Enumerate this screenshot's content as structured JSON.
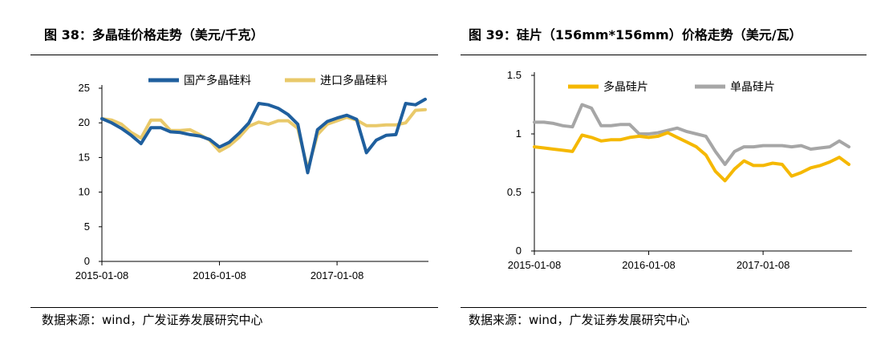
{
  "charts": [
    {
      "title": "图 38：多晶硅价格走势（美元/千克）",
      "source": "数据来源：wind，广发证券发展研究中心",
      "legend": [
        {
          "name": "国产多晶硅料",
          "color": "#1f5f9e"
        },
        {
          "name": "进口多晶硅料",
          "color": "#e9c96a"
        }
      ],
      "y_ticks": [
        "0",
        "5",
        "10",
        "15",
        "20",
        "25"
      ],
      "x_ticks": [
        "2015-01-08",
        "2016-01-08",
        "2017-01-08"
      ]
    },
    {
      "title": "图 39：硅片（156mm*156mm）价格走势（美元/瓦）",
      "source": "数据来源：wind，广发证券发展研究中心",
      "legend": [
        {
          "name": "多晶硅片",
          "color": "#f5b800"
        },
        {
          "name": "单晶硅片",
          "color": "#a6a6a6"
        }
      ],
      "y_ticks": [
        "0",
        "0.5",
        "1",
        "1.5"
      ],
      "x_ticks": [
        "2015-01-08",
        "2016-01-08",
        "2017-01-08"
      ]
    }
  ],
  "chart_data": [
    {
      "type": "line",
      "title": "图 38：多晶硅价格走势（美元/千克）",
      "xlabel": "",
      "ylabel": "",
      "ylim": [
        0,
        25
      ],
      "x_tick_labels": [
        "2015-01-08",
        "2016-01-08",
        "2017-01-08"
      ],
      "x": [
        "2015-01",
        "2015-02",
        "2015-03",
        "2015-04",
        "2015-05",
        "2015-06",
        "2015-07",
        "2015-08",
        "2015-09",
        "2015-10",
        "2015-11",
        "2015-12",
        "2016-01",
        "2016-02",
        "2016-03",
        "2016-04",
        "2016-05",
        "2016-06",
        "2016-07",
        "2016-08",
        "2016-09",
        "2016-10",
        "2016-11",
        "2016-12",
        "2017-01",
        "2017-02",
        "2017-03",
        "2017-04",
        "2017-05",
        "2017-06",
        "2017-07",
        "2017-08",
        "2017-09",
        "2017-10"
      ],
      "series": [
        {
          "name": "国产多晶硅料",
          "color": "#1f5f9e",
          "values": [
            20.6,
            20.0,
            19.2,
            18.2,
            17.0,
            19.3,
            19.3,
            18.7,
            18.6,
            18.3,
            18.1,
            17.6,
            16.5,
            17.2,
            18.5,
            20.0,
            22.8,
            22.6,
            22.1,
            21.2,
            19.8,
            12.8,
            19.0,
            20.2,
            20.7,
            21.1,
            20.5,
            15.7,
            17.5,
            18.2,
            18.3,
            22.8,
            22.6,
            23.4
          ]
        },
        {
          "name": "进口多晶硅料",
          "color": "#e9c96a",
          "values": [
            20.6,
            20.4,
            19.8,
            18.6,
            17.8,
            20.4,
            20.4,
            18.9,
            18.9,
            19.0,
            18.3,
            17.5,
            15.9,
            16.7,
            17.9,
            19.5,
            20.1,
            19.8,
            20.3,
            20.3,
            19.2,
            13.3,
            18.3,
            19.8,
            20.3,
            20.8,
            20.4,
            19.6,
            19.6,
            19.7,
            19.7,
            20.0,
            21.8,
            21.9
          ]
        }
      ]
    },
    {
      "type": "line",
      "title": "图 39：硅片（156mm*156mm）价格走势（美元/瓦）",
      "xlabel": "",
      "ylabel": "",
      "ylim": [
        0,
        1.5
      ],
      "x_tick_labels": [
        "2015-01-08",
        "2016-01-08",
        "2017-01-08"
      ],
      "x": [
        "2015-01",
        "2015-02",
        "2015-03",
        "2015-04",
        "2015-05",
        "2015-06",
        "2015-07",
        "2015-08",
        "2015-09",
        "2015-10",
        "2015-11",
        "2015-12",
        "2016-01",
        "2016-02",
        "2016-03",
        "2016-04",
        "2016-05",
        "2016-06",
        "2016-07",
        "2016-08",
        "2016-09",
        "2016-10",
        "2016-11",
        "2016-12",
        "2017-01",
        "2017-02",
        "2017-03",
        "2017-04",
        "2017-05",
        "2017-06",
        "2017-07",
        "2017-08",
        "2017-09",
        "2017-10"
      ],
      "series": [
        {
          "name": "多晶硅片",
          "color": "#f5b800",
          "values": [
            0.89,
            0.88,
            0.87,
            0.86,
            0.85,
            0.99,
            0.97,
            0.94,
            0.95,
            0.95,
            0.97,
            0.98,
            0.97,
            0.98,
            1.01,
            0.97,
            0.93,
            0.89,
            0.82,
            0.68,
            0.6,
            0.7,
            0.77,
            0.73,
            0.73,
            0.75,
            0.74,
            0.64,
            0.67,
            0.71,
            0.73,
            0.76,
            0.8,
            0.74
          ]
        },
        {
          "name": "单晶硅片",
          "color": "#a6a6a6",
          "values": [
            1.1,
            1.1,
            1.09,
            1.07,
            1.06,
            1.25,
            1.22,
            1.07,
            1.07,
            1.08,
            1.08,
            1.0,
            1.0,
            1.01,
            1.03,
            1.05,
            1.02,
            1.0,
            0.98,
            0.85,
            0.74,
            0.85,
            0.89,
            0.89,
            0.9,
            0.9,
            0.9,
            0.89,
            0.9,
            0.87,
            0.88,
            0.89,
            0.94,
            0.89
          ]
        }
      ]
    }
  ]
}
